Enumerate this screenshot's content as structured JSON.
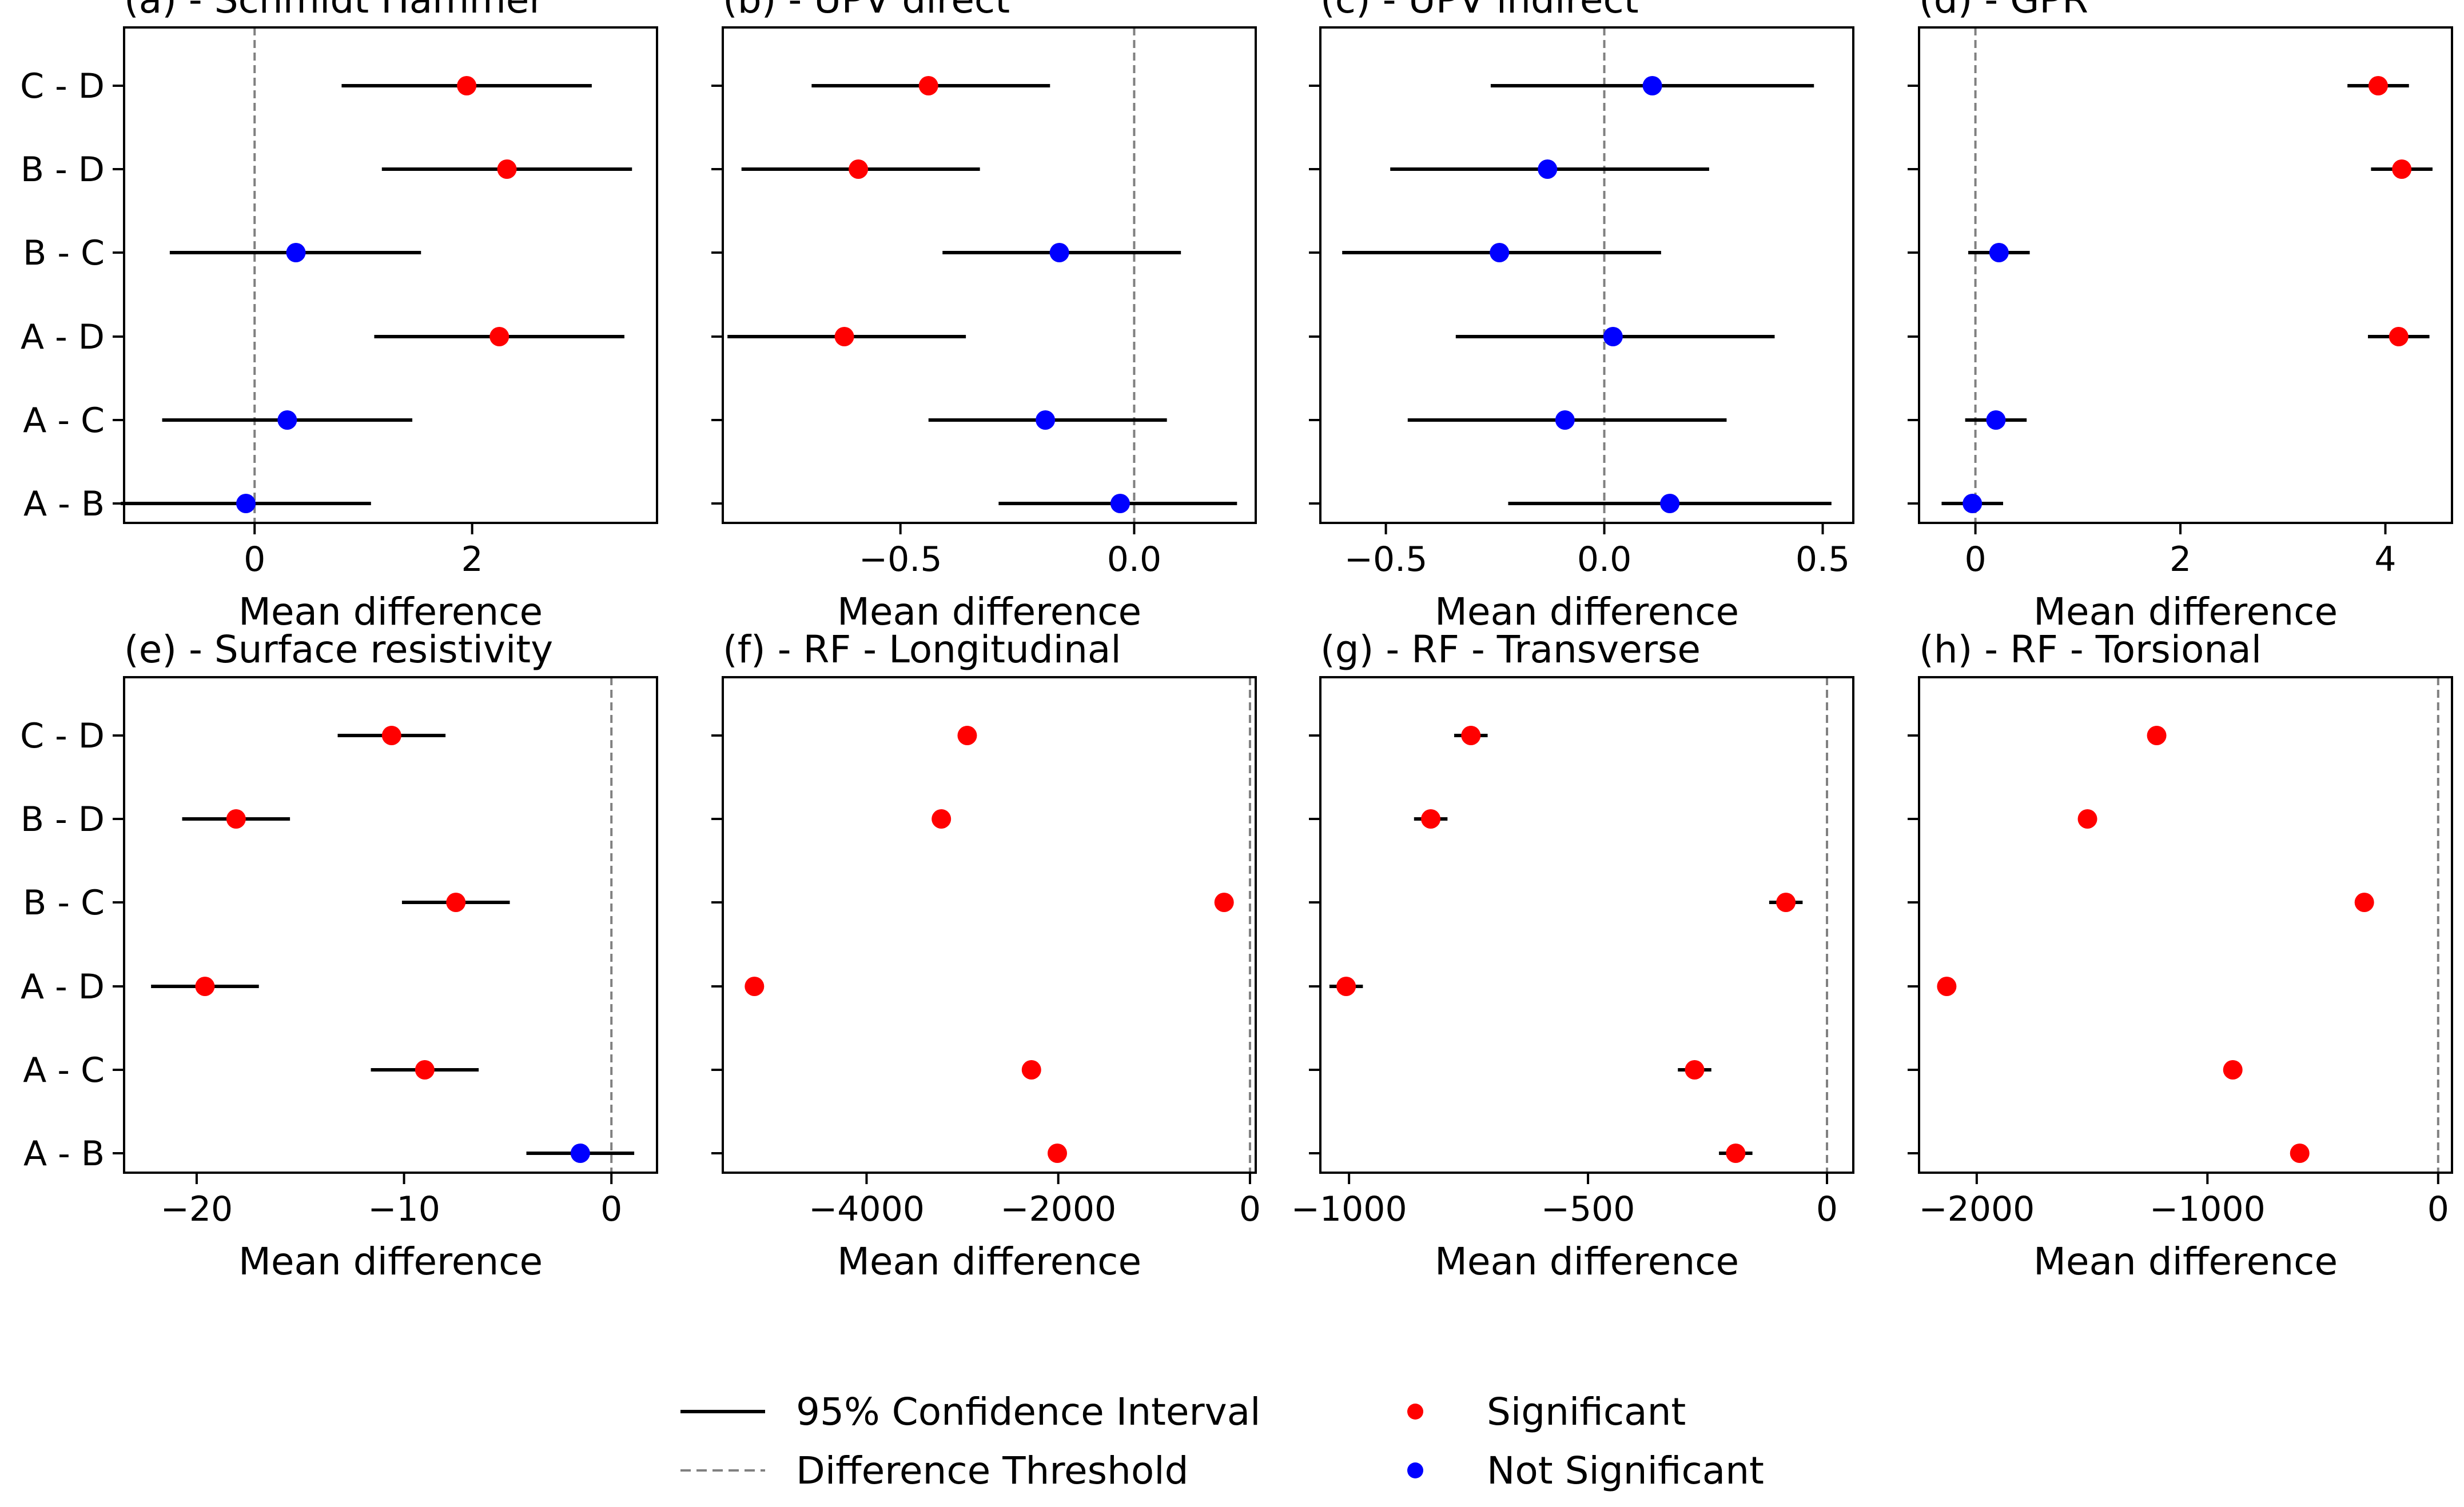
{
  "colors": {
    "significant": "#ff0000",
    "not_significant": "#0000ff",
    "ci": "#000000",
    "threshold": "#808080"
  },
  "comparisons": [
    "C - D",
    "B - D",
    "B - C",
    "A - D",
    "A - C",
    "A - B"
  ],
  "legend": {
    "ci_label": "95% Confidence Interval",
    "threshold_label": "Difference Threshold",
    "significant_label": "Significant",
    "not_significant_label": "Not Significant"
  },
  "chart_data": [
    {
      "type": "scatter",
      "title": "(a) - Schmidt Hammer",
      "xlabel": "Mean difference",
      "xlim": [
        -1.2,
        3.7
      ],
      "xticks": [
        0,
        2
      ],
      "xtick_labels": [
        "0",
        "2"
      ],
      "threshold": 0,
      "show_ylabels": true,
      "rows": [
        {
          "label": "C - D",
          "mean": 1.95,
          "low": 0.8,
          "high": 3.1,
          "significant": true
        },
        {
          "label": "B - D",
          "mean": 2.32,
          "low": 1.17,
          "high": 3.47,
          "significant": true
        },
        {
          "label": "B - C",
          "mean": 0.38,
          "low": -0.78,
          "high": 1.53,
          "significant": false
        },
        {
          "label": "A - D",
          "mean": 2.25,
          "low": 1.1,
          "high": 3.4,
          "significant": true
        },
        {
          "label": "A - C",
          "mean": 0.3,
          "low": -0.85,
          "high": 1.45,
          "significant": false
        },
        {
          "label": "A - B",
          "mean": -0.08,
          "low": -1.23,
          "high": 1.07,
          "significant": false
        }
      ]
    },
    {
      "type": "scatter",
      "title": "(b) - UPV direct",
      "xlabel": "Mean difference",
      "xlim": [
        -0.88,
        0.26
      ],
      "xticks": [
        -0.5,
        0.0
      ],
      "xtick_labels": [
        "−0.5",
        "0.0"
      ],
      "threshold": 0,
      "show_ylabels": false,
      "rows": [
        {
          "label": "C - D",
          "mean": -0.44,
          "low": -0.69,
          "high": -0.18,
          "significant": true
        },
        {
          "label": "B - D",
          "mean": -0.59,
          "low": -0.84,
          "high": -0.33,
          "significant": true
        },
        {
          "label": "B - C",
          "mean": -0.16,
          "low": -0.41,
          "high": 0.1,
          "significant": false
        },
        {
          "label": "A - D",
          "mean": -0.62,
          "low": -0.87,
          "high": -0.36,
          "significant": true
        },
        {
          "label": "A - C",
          "mean": -0.19,
          "low": -0.44,
          "high": 0.07,
          "significant": false
        },
        {
          "label": "A - B",
          "mean": -0.03,
          "low": -0.29,
          "high": 0.22,
          "significant": false
        }
      ]
    },
    {
      "type": "scatter",
      "title": "(c) - UPV indirect",
      "xlabel": "Mean difference",
      "xlim": [
        -0.65,
        0.57
      ],
      "xticks": [
        -0.5,
        0.0,
        0.5
      ],
      "xtick_labels": [
        "−0.5",
        "0.0",
        "0.5"
      ],
      "threshold": 0,
      "show_ylabels": false,
      "rows": [
        {
          "label": "C - D",
          "mean": 0.11,
          "low": -0.26,
          "high": 0.48,
          "significant": false
        },
        {
          "label": "B - D",
          "mean": -0.13,
          "low": -0.49,
          "high": 0.24,
          "significant": false
        },
        {
          "label": "B - C",
          "mean": -0.24,
          "low": -0.6,
          "high": 0.13,
          "significant": false
        },
        {
          "label": "A - D",
          "mean": 0.02,
          "low": -0.34,
          "high": 0.39,
          "significant": false
        },
        {
          "label": "A - C",
          "mean": -0.09,
          "low": -0.45,
          "high": 0.28,
          "significant": false
        },
        {
          "label": "A - B",
          "mean": 0.15,
          "low": -0.22,
          "high": 0.52,
          "significant": false
        }
      ]
    },
    {
      "type": "scatter",
      "title": "(d) - GPR",
      "xlabel": "Mean difference",
      "xlim": [
        -0.55,
        4.65
      ],
      "xticks": [
        0,
        2,
        4
      ],
      "xtick_labels": [
        "0",
        "2",
        "4"
      ],
      "threshold": 0,
      "show_ylabels": false,
      "rows": [
        {
          "label": "C - D",
          "mean": 3.93,
          "low": 3.63,
          "high": 4.23,
          "significant": true
        },
        {
          "label": "B - D",
          "mean": 4.16,
          "low": 3.86,
          "high": 4.46,
          "significant": true
        },
        {
          "label": "B - C",
          "mean": 0.23,
          "low": -0.07,
          "high": 0.53,
          "significant": false
        },
        {
          "label": "A - D",
          "mean": 4.13,
          "low": 3.83,
          "high": 4.43,
          "significant": true
        },
        {
          "label": "A - C",
          "mean": 0.2,
          "low": -0.1,
          "high": 0.5,
          "significant": false
        },
        {
          "label": "A - B",
          "mean": -0.03,
          "low": -0.33,
          "high": 0.27,
          "significant": false
        }
      ]
    },
    {
      "type": "scatter",
      "title": "(e) - Surface resistivity",
      "xlabel": "Mean difference",
      "xlim": [
        -23.5,
        2.2
      ],
      "xticks": [
        -20,
        -10,
        0
      ],
      "xtick_labels": [
        "−20",
        "−10",
        "0"
      ],
      "threshold": 0,
      "show_ylabels": true,
      "rows": [
        {
          "label": "C - D",
          "mean": -10.6,
          "low": -13.2,
          "high": -8.0,
          "significant": true
        },
        {
          "label": "B - D",
          "mean": -18.1,
          "low": -20.7,
          "high": -15.5,
          "significant": true
        },
        {
          "label": "B - C",
          "mean": -7.5,
          "low": -10.1,
          "high": -4.9,
          "significant": true
        },
        {
          "label": "A - D",
          "mean": -19.6,
          "low": -22.2,
          "high": -17.0,
          "significant": true
        },
        {
          "label": "A - C",
          "mean": -9.0,
          "low": -11.6,
          "high": -6.4,
          "significant": true
        },
        {
          "label": "A - B",
          "mean": -1.5,
          "low": -4.1,
          "high": 1.1,
          "significant": false
        }
      ]
    },
    {
      "type": "scatter",
      "title": "(f) - RF - Longitudinal",
      "xlabel": "Mean difference",
      "xlim": [
        -5500,
        60
      ],
      "xticks": [
        -4000,
        -2000,
        0
      ],
      "xtick_labels": [
        "−4000",
        "−2000",
        "0"
      ],
      "threshold": 0,
      "show_ylabels": false,
      "rows": [
        {
          "label": "C - D",
          "mean": -2950,
          "low": -3000,
          "high": -2900,
          "significant": true
        },
        {
          "label": "B - D",
          "mean": -3220,
          "low": -3270,
          "high": -3170,
          "significant": true
        },
        {
          "label": "B - C",
          "mean": -270,
          "low": -320,
          "high": -220,
          "significant": true
        },
        {
          "label": "A - D",
          "mean": -5170,
          "low": -5220,
          "high": -5120,
          "significant": true
        },
        {
          "label": "A - C",
          "mean": -2280,
          "low": -2330,
          "high": -2230,
          "significant": true
        },
        {
          "label": "A - B",
          "mean": -2010,
          "low": -2060,
          "high": -1960,
          "significant": true
        }
      ]
    },
    {
      "type": "scatter",
      "title": "(g) - RF - Transverse",
      "xlabel": "Mean difference",
      "xlim": [
        -1060,
        55
      ],
      "xticks": [
        -1000,
        -500,
        0
      ],
      "xtick_labels": [
        "−1000",
        "−500",
        "0"
      ],
      "threshold": 0,
      "show_ylabels": false,
      "rows": [
        {
          "label": "C - D",
          "mean": -745,
          "low": -780,
          "high": -710,
          "significant": true
        },
        {
          "label": "B - D",
          "mean": -829,
          "low": -864,
          "high": -794,
          "significant": true
        },
        {
          "label": "B - C",
          "mean": -86,
          "low": -121,
          "high": -51,
          "significant": true
        },
        {
          "label": "A - D",
          "mean": -1006,
          "low": -1041,
          "high": -971,
          "significant": true
        },
        {
          "label": "A - C",
          "mean": -277,
          "low": -312,
          "high": -242,
          "significant": true
        },
        {
          "label": "A - B",
          "mean": -191,
          "low": -226,
          "high": -156,
          "significant": true
        }
      ]
    },
    {
      "type": "scatter",
      "title": "(h) - RF - Torsional",
      "xlabel": "Mean difference",
      "xlim": [
        -2250,
        60
      ],
      "xticks": [
        -2000,
        -1000,
        0
      ],
      "xtick_labels": [
        "−2000",
        "−1000",
        "0"
      ],
      "threshold": 0,
      "show_ylabels": false,
      "rows": [
        {
          "label": "C - D",
          "mean": -1220,
          "low": -1240,
          "high": -1200,
          "significant": true
        },
        {
          "label": "B - D",
          "mean": -1520,
          "low": -1540,
          "high": -1500,
          "significant": true
        },
        {
          "label": "B - C",
          "mean": -320,
          "low": -340,
          "high": -300,
          "significant": true
        },
        {
          "label": "A - D",
          "mean": -2130,
          "low": -2150,
          "high": -2110,
          "significant": true
        },
        {
          "label": "A - C",
          "mean": -890,
          "low": -910,
          "high": -870,
          "significant": true
        },
        {
          "label": "A - B",
          "mean": -600,
          "low": -620,
          "high": -580,
          "significant": true
        }
      ]
    }
  ]
}
